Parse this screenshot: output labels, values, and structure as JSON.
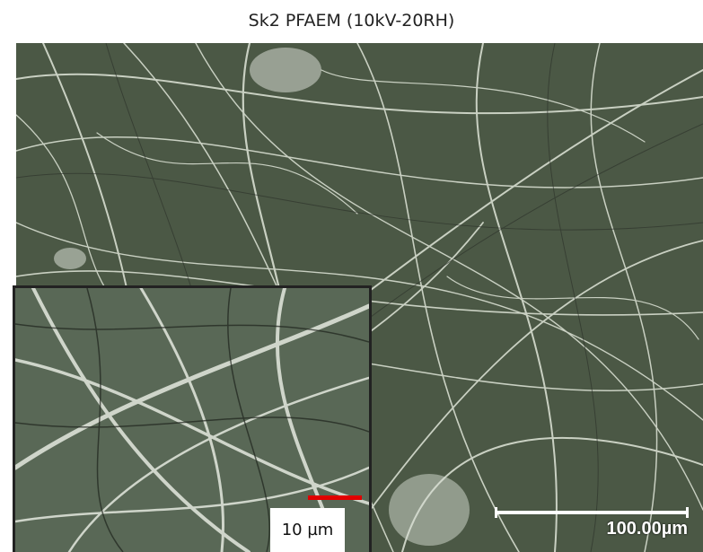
{
  "figure": {
    "title": "Sk2 PFAEM (10kV-20RH)"
  },
  "main_image": {
    "scale_bar_label": "100.00µm",
    "scale_bar_color": "#ffffff",
    "background_color": "#4a5744",
    "fiber_color": "#e6ecdf"
  },
  "inset_image": {
    "scale_bar_label": "10 µm",
    "scale_bar_color": "#e00000",
    "border_color": "#222222",
    "background_color": "#566453"
  }
}
